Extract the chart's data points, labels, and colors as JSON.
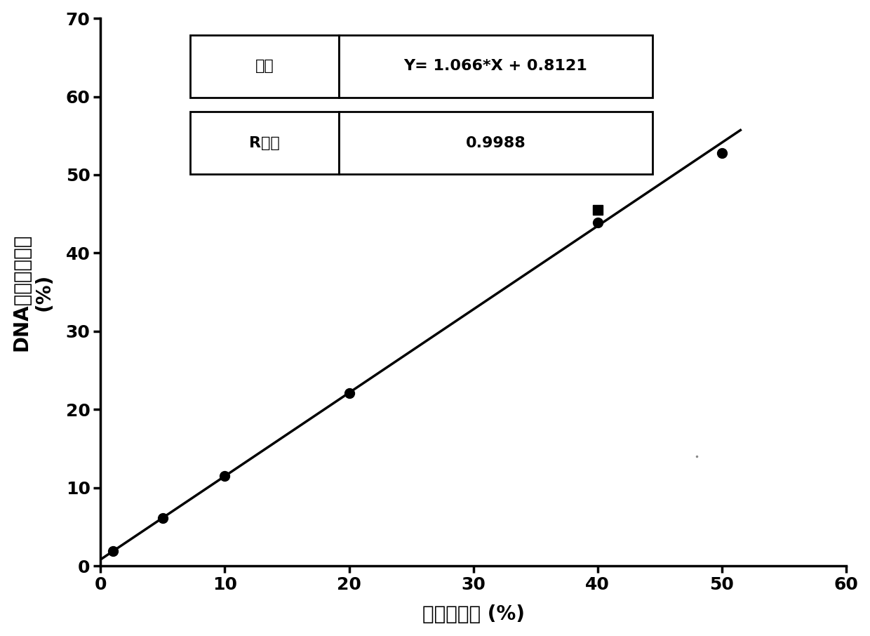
{
  "x_data": [
    1,
    5,
    10,
    20,
    40,
    50
  ],
  "y_data": [
    1.88,
    6.15,
    11.47,
    22.07,
    43.86,
    52.82
  ],
  "square_point_x": 40,
  "square_point_y": 45.5,
  "slope": 1.066,
  "intercept": 0.8121,
  "r_squared": "0.9988",
  "equation": "Y= 1.066*X + 0.8121",
  "r_sq_label": "R平方",
  "eq_label": "方程",
  "xlabel": "质量百分比 (%)",
  "ylabel_line1": "DNA拷贝数百分比",
  "ylabel_line2": "(%)",
  "xlim": [
    0,
    60
  ],
  "ylim": [
    0,
    70
  ],
  "xticks": [
    0,
    10,
    20,
    30,
    40,
    50,
    60
  ],
  "yticks": [
    0,
    10,
    20,
    30,
    40,
    50,
    60,
    70
  ],
  "line_color": "#000000",
  "point_color": "#000000",
  "background_color": "#ffffff",
  "marker_size": 10,
  "line_width": 2.5,
  "label_fontsize": 20,
  "tick_fontsize": 18,
  "annotation_fontsize": 16
}
